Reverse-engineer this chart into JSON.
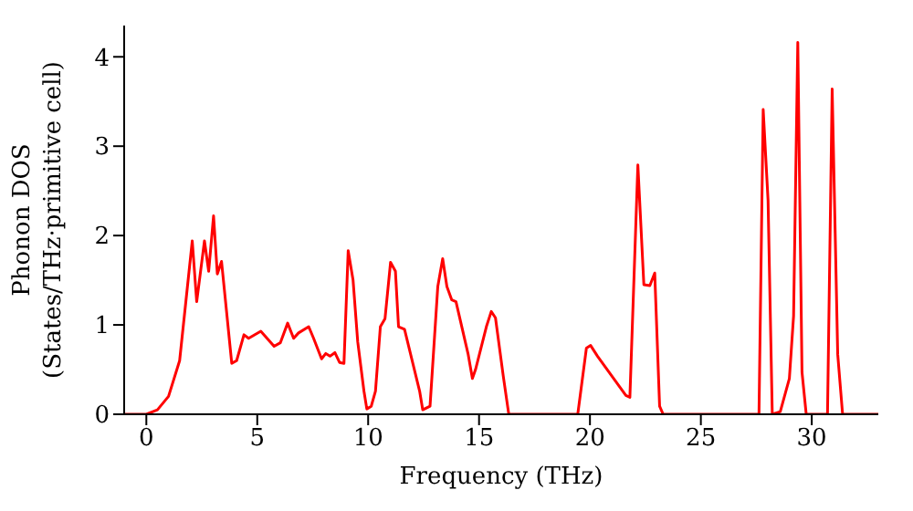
{
  "chart_data": {
    "type": "line",
    "xlabel": "Frequency (THz)",
    "ylabel": "Phonon DOS\n(States/THz·primitive cell)",
    "x": [
      -1,
      0,
      0.5,
      1,
      1.5,
      2.07,
      2.27,
      2.62,
      2.81,
      3.03,
      3.2,
      3.39,
      3.85,
      4.07,
      4.4,
      4.61,
      5.16,
      5.76,
      6.04,
      6.37,
      6.64,
      6.86,
      7.32,
      7.54,
      7.9,
      8.09,
      8.28,
      8.5,
      8.71,
      8.91,
      9.1,
      9.32,
      9.53,
      9.81,
      9.94,
      10.14,
      10.33,
      10.55,
      10.76,
      11.01,
      11.23,
      11.37,
      11.64,
      12.32,
      12.46,
      12.79,
      13.14,
      13.36,
      13.55,
      13.77,
      13.96,
      14.51,
      14.7,
      14.84,
      15.33,
      15.55,
      15.74,
      16.09,
      16.34,
      19.45,
      19.84,
      20.03,
      20.34,
      21.62,
      21.8,
      22.16,
      22.43,
      22.7,
      22.92,
      23.14,
      23.3,
      27.62,
      27.81,
      28.03,
      28.22,
      28.58,
      28.99,
      29.18,
      29.37,
      29.56,
      29.75,
      30.71,
      30.92,
      31.17,
      31.39,
      33
    ],
    "series": [
      {
        "color": "#ff0000",
        "values": [
          0,
          0,
          0.05,
          0.2,
          0.6,
          1.94,
          1.26,
          1.94,
          1.6,
          2.22,
          1.57,
          1.71,
          0.57,
          0.6,
          0.89,
          0.85,
          0.93,
          0.76,
          0.8,
          1.02,
          0.85,
          0.91,
          0.98,
          0.85,
          0.62,
          0.68,
          0.65,
          0.69,
          0.58,
          0.57,
          1.83,
          1.5,
          0.81,
          0.26,
          0.06,
          0.09,
          0.26,
          0.98,
          1.07,
          1.7,
          1.6,
          0.98,
          0.95,
          0.26,
          0.05,
          0.09,
          1.43,
          1.74,
          1.43,
          1.28,
          1.26,
          0.67,
          0.4,
          0.5,
          0.98,
          1.15,
          1.08,
          0.43,
          0,
          0,
          0.74,
          0.77,
          0.65,
          0.21,
          0.19,
          2.79,
          1.45,
          1.44,
          1.58,
          0.09,
          0,
          0,
          3.41,
          2.39,
          0,
          0.03,
          0.4,
          1.1,
          4.16,
          0.47,
          0,
          0,
          3.64,
          0.67,
          0,
          0
        ]
      }
    ],
    "xlim": [
      -1,
      33
    ],
    "xticks": [
      0,
      5,
      10,
      15,
      20,
      25,
      30
    ],
    "ylim": [
      0,
      4.35
    ],
    "yticks": [
      0,
      1,
      2,
      3,
      4
    ],
    "grid": false,
    "legend": false,
    "marker": "none",
    "line_style": "solid"
  }
}
